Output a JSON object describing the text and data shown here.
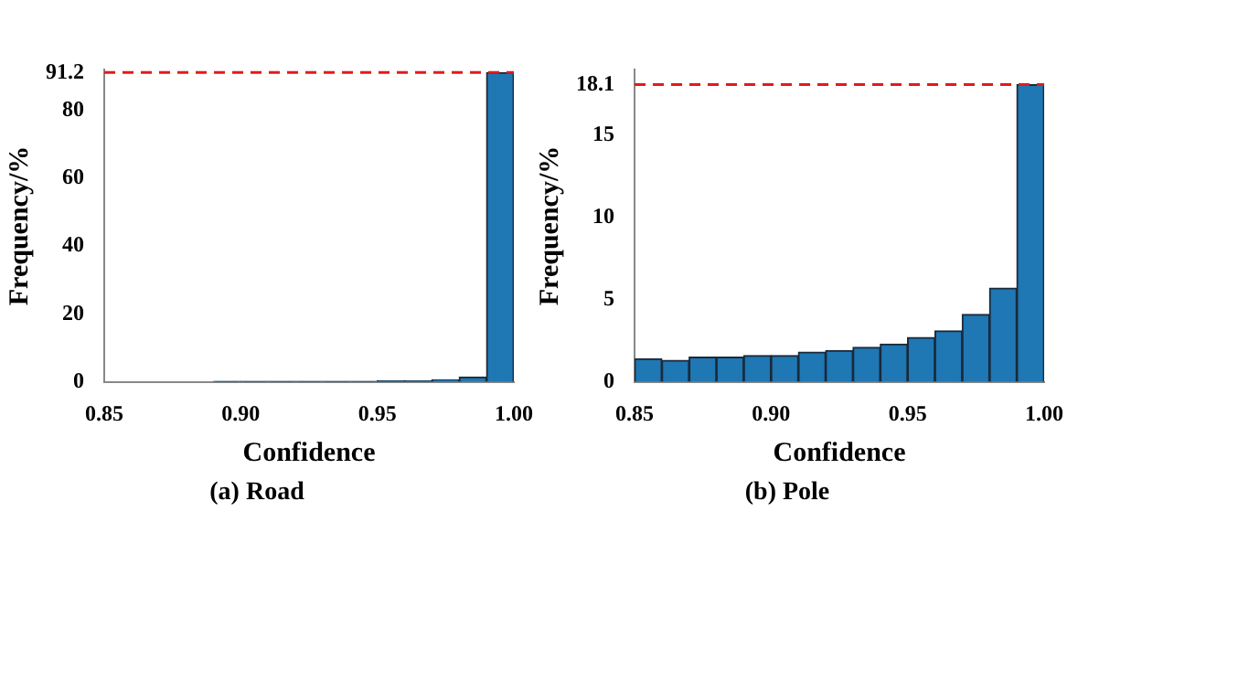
{
  "chart_data": [
    {
      "type": "histogram",
      "title": "(a) Road",
      "xlabel": "Confidence",
      "ylabel": "Frequency/%",
      "bins": [
        0.85,
        0.86,
        0.87,
        0.88,
        0.89,
        0.9,
        0.91,
        0.92,
        0.93,
        0.94,
        0.95,
        0.96,
        0.97,
        0.98,
        0.99,
        1.0
      ],
      "values": [
        0,
        0,
        0,
        0,
        0.1,
        0.1,
        0.1,
        0.1,
        0.1,
        0.1,
        0.3,
        0.3,
        0.6,
        1.4,
        91.2
      ],
      "color": "#1f77b4",
      "xlim": [
        0.85,
        1.0
      ],
      "xticks": [
        {
          "value": 0.85,
          "label": "0.85"
        },
        {
          "value": 0.9,
          "label": "0.90"
        },
        {
          "value": 0.95,
          "label": "0.95"
        },
        {
          "value": 1.0,
          "label": "1.00"
        }
      ],
      "ylim": [
        0,
        92
      ],
      "yticks": [
        0,
        20,
        40,
        60,
        80,
        91.2
      ],
      "ref_lines": [
        {
          "axis": "y",
          "value": 91.2,
          "color": "#e31a1c",
          "line_style": "dashed"
        }
      ],
      "grid": false,
      "legend": false
    },
    {
      "type": "histogram",
      "title": "(b) Pole",
      "xlabel": "Confidence",
      "ylabel": "Frequency/%",
      "bins": [
        0.85,
        0.86,
        0.87,
        0.88,
        0.89,
        0.9,
        0.91,
        0.92,
        0.93,
        0.94,
        0.95,
        0.96,
        0.97,
        0.98,
        0.99,
        1.0
      ],
      "values": [
        1.4,
        1.3,
        1.5,
        1.5,
        1.6,
        1.6,
        1.8,
        1.9,
        2.1,
        2.3,
        2.7,
        3.1,
        4.1,
        5.7,
        18.1
      ],
      "color": "#1f77b4",
      "xlim": [
        0.85,
        1.0
      ],
      "xticks": [
        {
          "value": 0.85,
          "label": "0.85"
        },
        {
          "value": 0.9,
          "label": "0.90"
        },
        {
          "value": 0.95,
          "label": "0.95"
        },
        {
          "value": 1.0,
          "label": "1.00"
        }
      ],
      "ylim": [
        0,
        19
      ],
      "yticks": [
        0,
        5,
        10,
        15,
        18.1
      ],
      "ref_lines": [
        {
          "axis": "y",
          "value": 18.1,
          "color": "#e31a1c",
          "line_style": "dashed"
        }
      ],
      "grid": false,
      "legend": false
    }
  ]
}
